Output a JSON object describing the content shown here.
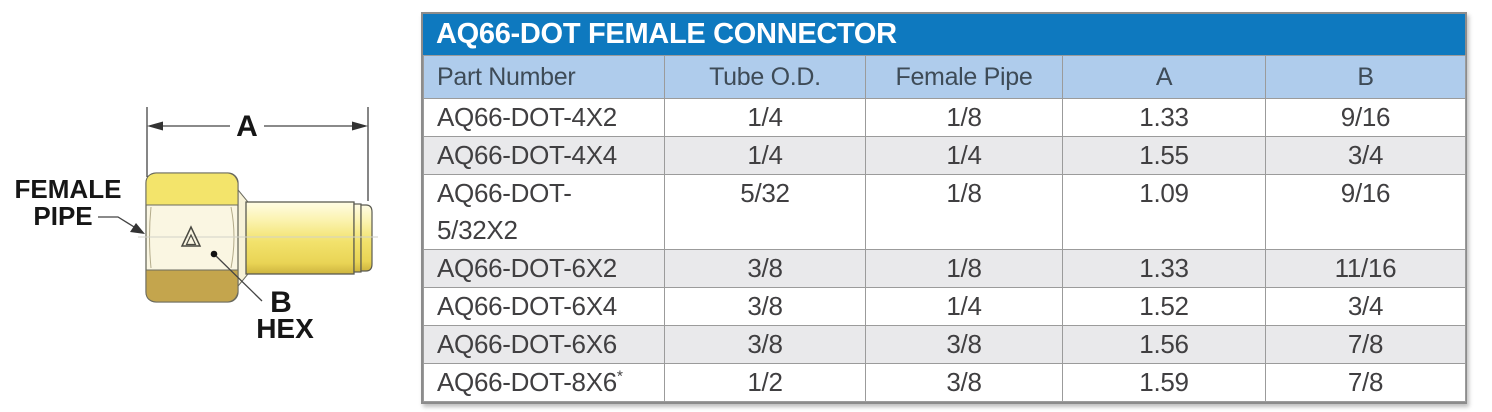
{
  "title": "AQ66-DOT FEMALE CONNECTOR",
  "diagram": {
    "label_female_pipe_line1": "FEMALE",
    "label_female_pipe_line2": "PIPE",
    "label_dim_a": "A",
    "label_dim_b": "B",
    "label_hex": "HEX"
  },
  "table": {
    "columns": [
      "Part Number",
      "Tube O.D.",
      "Female Pipe",
      "A",
      "B"
    ],
    "rows": [
      {
        "part": "AQ66-DOT-4X2",
        "tube_od": "1/4",
        "female_pipe": "1/8",
        "a": "1.33",
        "b": "9/16"
      },
      {
        "part": "AQ66-DOT-4X4",
        "tube_od": "1/4",
        "female_pipe": "1/4",
        "a": "1.55",
        "b": "3/4"
      },
      {
        "part": "AQ66-DOT-\n5/32X2",
        "tube_od": "5/32",
        "female_pipe": "1/8",
        "a": "1.09",
        "b": "9/16"
      },
      {
        "part": "AQ66-DOT-6X2",
        "tube_od": "3/8",
        "female_pipe": "1/8",
        "a": "1.33",
        "b": "11/16"
      },
      {
        "part": "AQ66-DOT-6X4",
        "tube_od": "3/8",
        "female_pipe": "1/4",
        "a": "1.52",
        "b": "3/4"
      },
      {
        "part": "AQ66-DOT-6X6",
        "tube_od": "3/8",
        "female_pipe": "3/8",
        "a": "1.56",
        "b": "7/8"
      },
      {
        "part": "AQ66-DOT-8X6",
        "part_note": "*",
        "tube_od": "1/2",
        "female_pipe": "3/8",
        "a": "1.59",
        "b": "7/8"
      }
    ]
  },
  "colors": {
    "title_bar_blue": "#0e79bf",
    "header_blue": "#afccec",
    "alt_row_gray": "#e9e9eb",
    "brass_bright": "#f3e46b",
    "brass_face_cream": "#faf6e2",
    "brass_dark": "#c4a54d"
  }
}
